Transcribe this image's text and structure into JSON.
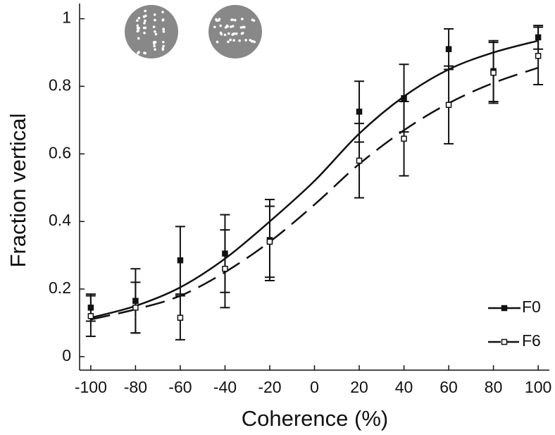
{
  "chart_data": {
    "type": "scatter",
    "xlabel": "Coherence (%)",
    "ylabel": "Fraction vertical",
    "x": [
      -100,
      -80,
      -60,
      -40,
      -20,
      20,
      40,
      60,
      80,
      100
    ],
    "fit_x": [
      -100,
      -80,
      -60,
      -40,
      -20,
      0,
      20,
      40,
      60,
      80,
      100
    ],
    "series": [
      {
        "name": "F0",
        "color": "#111111",
        "marker": "filled",
        "line": "solid",
        "values": [
          0.145,
          0.165,
          0.285,
          0.305,
          0.345,
          0.725,
          0.765,
          0.91,
          0.845,
          0.945
        ],
        "errors": [
          0.04,
          0.095,
          0.1,
          0.115,
          0.12,
          0.09,
          0.1,
          0.06,
          0.09,
          0.035
        ],
        "fit": [
          0.115,
          0.15,
          0.205,
          0.29,
          0.4,
          0.52,
          0.66,
          0.77,
          0.85,
          0.9,
          0.935
        ]
      },
      {
        "name": "F6",
        "color": "#111111",
        "marker": "open",
        "line": "dashed",
        "values": [
          0.12,
          0.145,
          0.115,
          0.26,
          0.34,
          0.58,
          0.645,
          0.745,
          0.84,
          0.89
        ],
        "errors": [
          0.06,
          0.075,
          0.065,
          0.115,
          0.105,
          0.11,
          0.11,
          0.115,
          0.09,
          0.085
        ],
        "fit": [
          0.11,
          0.14,
          0.18,
          0.25,
          0.34,
          0.45,
          0.57,
          0.67,
          0.75,
          0.81,
          0.855
        ]
      }
    ],
    "xlim": [
      -105,
      105
    ],
    "ylim": [
      -0.04,
      1.045
    ],
    "xticks": [
      -100,
      -80,
      -60,
      -40,
      -20,
      0,
      20,
      40,
      60,
      80,
      100
    ],
    "yticks": [
      0,
      0.2,
      0.4,
      0.6,
      0.8,
      1
    ],
    "legend": "lower right"
  }
}
